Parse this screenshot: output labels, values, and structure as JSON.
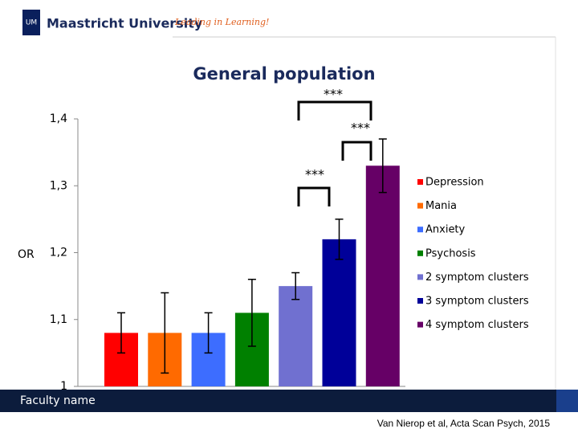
{
  "header": {
    "brand": "Maastricht University",
    "tagline": "Leading in Learning!"
  },
  "chart_data": {
    "type": "bar",
    "title": "General population",
    "ylabel": "OR",
    "ylim": [
      1,
      1.4
    ],
    "yticks": [
      {
        "value": 1,
        "label": "1"
      },
      {
        "value": 1.1,
        "label": "1,1"
      },
      {
        "value": 1.2,
        "label": "1,2"
      },
      {
        "value": 1.3,
        "label": "1,3"
      },
      {
        "value": 1.4,
        "label": "1,4"
      }
    ],
    "series": [
      {
        "name": "Depression",
        "color": "#ff0000",
        "values": [
          1.08
        ],
        "errors": [
          0.03
        ]
      },
      {
        "name": "Mania",
        "color": "#ff6a00",
        "values": [
          1.08
        ],
        "errors": [
          0.06
        ]
      },
      {
        "name": "Anxiety",
        "color": "#3d6dff",
        "values": [
          1.08
        ],
        "errors": [
          0.03
        ]
      },
      {
        "name": "Psychosis",
        "color": "#008000",
        "values": [
          1.11
        ],
        "errors": [
          0.05
        ]
      },
      {
        "name": "2 symptom clusters",
        "color": "#7070d0",
        "values": [
          1.15
        ],
        "errors": [
          0.02
        ]
      },
      {
        "name": "3 symptom clusters",
        "color": "#000099",
        "values": [
          1.22
        ],
        "errors": [
          0.03
        ]
      },
      {
        "name": "4 symptom clusters",
        "color": "#660066",
        "values": [
          1.33
        ],
        "errors": [
          0.04
        ]
      }
    ],
    "annotations": [
      "***",
      "***",
      "***"
    ]
  },
  "footer": {
    "faculty": "Faculty name",
    "citation": "Van Nierop et al, Acta Scan Psych, 2015"
  }
}
